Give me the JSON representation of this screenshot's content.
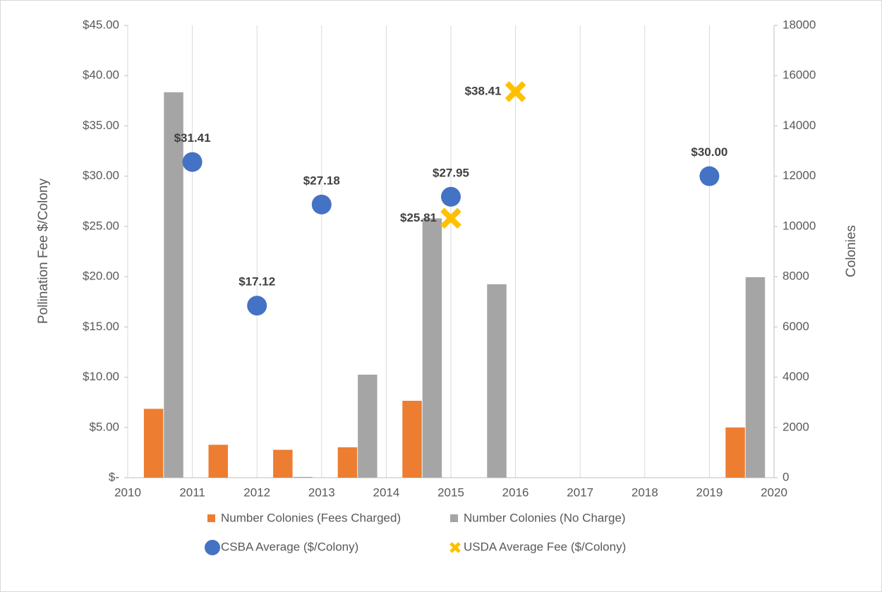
{
  "chart_data": {
    "type": "combo",
    "y_label": "Pollination Fee $/Colony",
    "y2_label": "Colonies",
    "xlim": [
      2010,
      2020
    ],
    "xticks": [
      2010,
      2011,
      2012,
      2013,
      2014,
      2015,
      2016,
      2017,
      2018,
      2019,
      2020
    ],
    "ylim": [
      0,
      45
    ],
    "yticks": [
      {
        "value": 0,
        "label": "$-"
      },
      {
        "value": 5,
        "label": "$5.00"
      },
      {
        "value": 10,
        "label": "$10.00"
      },
      {
        "value": 15,
        "label": "$15.00"
      },
      {
        "value": 20,
        "label": "$20.00"
      },
      {
        "value": 25,
        "label": "$25.00"
      },
      {
        "value": 30,
        "label": "$30.00"
      },
      {
        "value": 35,
        "label": "$35.00"
      },
      {
        "value": 40,
        "label": "$40.00"
      },
      {
        "value": 45,
        "label": "$45.00"
      }
    ],
    "y2lim": [
      0,
      18000
    ],
    "y2ticks": [
      0,
      2000,
      4000,
      6000,
      8000,
      10000,
      12000,
      14000,
      16000,
      18000
    ],
    "grid": "vertical",
    "series": [
      {
        "name": "Number Colonies (Fees Charged)",
        "type": "bar",
        "axis": "y2",
        "color": "#ed7d31",
        "x": [
          2010,
          2011,
          2012,
          2013,
          2014,
          2015,
          2016,
          2017,
          2018,
          2019
        ],
        "values": [
          2740,
          1310,
          1110,
          1210,
          3060,
          null,
          null,
          null,
          null,
          2000
        ]
      },
      {
        "name": "Number Colonies (No Charge)",
        "type": "bar",
        "axis": "y2",
        "color": "#a5a5a5",
        "x": [
          2010,
          2011,
          2012,
          2013,
          2014,
          2015,
          2016,
          2017,
          2018,
          2019
        ],
        "values": [
          15340,
          null,
          30,
          4100,
          10320,
          7700,
          null,
          null,
          null,
          7980
        ]
      },
      {
        "name": "CSBA Average ($/Colony)",
        "type": "scatter",
        "marker": "circle",
        "color": "#4472c4",
        "label_position": "above",
        "x": [
          2011,
          2012,
          2013,
          2015,
          2019
        ],
        "values": [
          31.41,
          17.12,
          27.18,
          27.95,
          30.0
        ],
        "value_labels": [
          "$31.41",
          "$17.12",
          "$27.18",
          "$27.95",
          "$30.00"
        ]
      },
      {
        "name": "USDA Average Fee ($/Colony)",
        "type": "scatter",
        "marker": "cross",
        "color": "#ffc000",
        "label_position": "left",
        "x": [
          2015,
          2016
        ],
        "values": [
          25.81,
          38.41
        ],
        "value_labels": [
          "$25.81",
          "$38.41"
        ]
      }
    ]
  }
}
